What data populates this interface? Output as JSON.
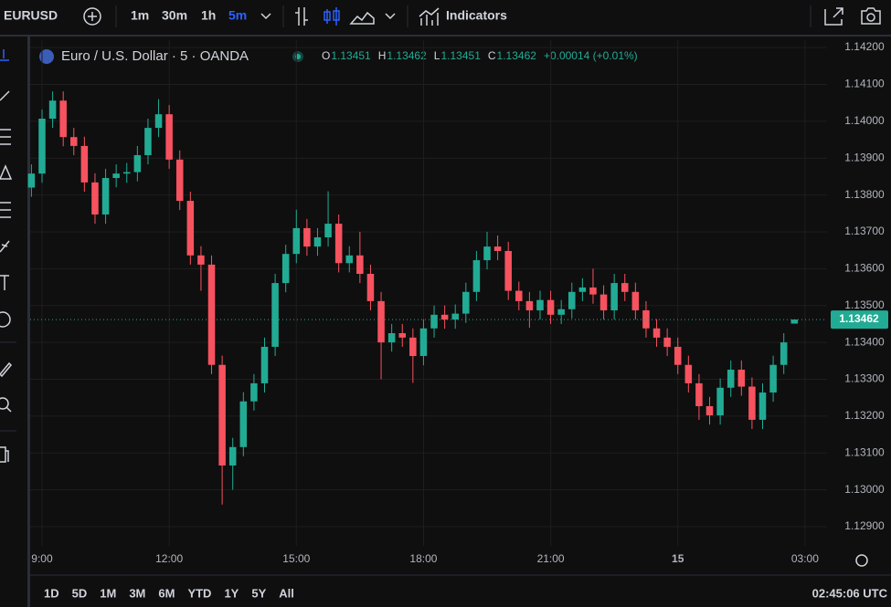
{
  "toolbar": {
    "symbol": "EURUSD",
    "intervals": [
      "1m",
      "30m",
      "1h",
      "5m"
    ],
    "indicators": "Indicators"
  },
  "ranges": [
    "1D",
    "5D",
    "1M",
    "3M",
    "6M",
    "YTD",
    "1Y",
    "5Y",
    "All"
  ],
  "clock": "02:45:06 UTC",
  "chart_data": {
    "type": "candlestick",
    "title": "Euro / U.S. Dollar · 5 · OANDA",
    "ohlc_legend": [
      {
        "label": "O",
        "value": 1.13451
      },
      {
        "label": "H",
        "value": 1.13462
      },
      {
        "label": "L",
        "value": 1.13451
      },
      {
        "label": "C",
        "value": 1.13462
      }
    ],
    "change": "+0.00014 (+0.01%)",
    "up_color": "#22ab94",
    "down_color": "#f7525f",
    "x": [
      8.75,
      9,
      9.25,
      9.5,
      9.75,
      10,
      10.25,
      10.5,
      10.75,
      11,
      11.25,
      11.5,
      11.75,
      12,
      12.25,
      12.5,
      12.75,
      13,
      13.25,
      13.5,
      13.75,
      14,
      14.25,
      14.5,
      14.75,
      15,
      15.25,
      15.5,
      15.75,
      16,
      16.25,
      16.5,
      16.75,
      17,
      17.25,
      17.5,
      17.75,
      18,
      18.25,
      18.5,
      18.75,
      19,
      19.25,
      19.5,
      19.75,
      20,
      20.25,
      20.5,
      20.75,
      21,
      21.25,
      21.5,
      21.75,
      22,
      22.25,
      22.5,
      22.75,
      23,
      23.25,
      23.5,
      23.75,
      24,
      24.25,
      24.5,
      24.75,
      25,
      25.25,
      25.5,
      25.75,
      26,
      26.25,
      26.5,
      26.75
    ],
    "open": [
      1.1382,
      1.13858,
      1.14007,
      1.14056,
      1.13957,
      1.13933,
      1.13834,
      1.13747,
      1.13846,
      1.13858,
      1.13862,
      1.13908,
      1.13982,
      1.14019,
      1.13896,
      1.13784,
      1.13636,
      1.13611,
      1.13339,
      1.13066,
      1.13116,
      1.1324,
      1.13289,
      1.13388,
      1.13561,
      1.1364,
      1.1371,
      1.1366,
      1.13685,
      1.13722,
      1.13615,
      1.13636,
      1.13586,
      1.13512,
      1.134,
      1.13425,
      1.13413,
      1.13363,
      1.13438,
      1.13475,
      1.13462,
      1.13478,
      1.13537,
      1.13623,
      1.1366,
      1.13648,
      1.1354,
      1.13512,
      1.13487,
      1.13515,
      1.13475,
      1.1349,
      1.13537,
      1.13549,
      1.1353,
      1.13487,
      1.13561,
      1.13537,
      1.13487,
      1.13438,
      1.13413,
      1.13388,
      1.13339,
      1.13289,
      1.13227,
      1.13202,
      1.13277,
      1.13326,
      1.1328,
      1.1319,
      1.13264,
      1.13339,
      1.13451
    ],
    "high": [
      1.13883,
      1.14032,
      1.14081,
      1.14081,
      1.13982,
      1.13958,
      1.13859,
      1.13871,
      1.13883,
      1.13887,
      1.13933,
      1.14007,
      1.1406,
      1.14044,
      1.13921,
      1.13809,
      1.13661,
      1.13636,
      1.13364,
      1.13141,
      1.13265,
      1.13314,
      1.13413,
      1.13586,
      1.13665,
      1.1376,
      1.13735,
      1.1371,
      1.1381,
      1.13747,
      1.13661,
      1.137,
      1.13611,
      1.13537,
      1.1345,
      1.1345,
      1.13438,
      1.13463,
      1.135,
      1.135,
      1.13503,
      1.13562,
      1.13648,
      1.137,
      1.1369,
      1.13673,
      1.13565,
      1.13537,
      1.1354,
      1.1354,
      1.13515,
      1.13562,
      1.13574,
      1.136,
      1.13555,
      1.13586,
      1.13586,
      1.13562,
      1.13512,
      1.13463,
      1.13438,
      1.13413,
      1.13364,
      1.13314,
      1.13252,
      1.13302,
      1.13351,
      1.13351,
      1.13305,
      1.13289,
      1.13364,
      1.13425,
      1.13462
    ],
    "low": [
      1.13795,
      1.13833,
      1.13982,
      1.13932,
      1.13908,
      1.13809,
      1.13722,
      1.13722,
      1.13821,
      1.13833,
      1.13837,
      1.13883,
      1.13957,
      1.13871,
      1.13759,
      1.13611,
      1.1354,
      1.13314,
      1.1296,
      1.13,
      1.13091,
      1.13215,
      1.13264,
      1.13363,
      1.13536,
      1.13615,
      1.13635,
      1.13635,
      1.1366,
      1.1359,
      1.1359,
      1.13561,
      1.13487,
      1.133,
      1.13375,
      1.13388,
      1.1329,
      1.13338,
      1.13413,
      1.13437,
      1.13437,
      1.13453,
      1.13512,
      1.13598,
      1.13623,
      1.13515,
      1.13487,
      1.1344,
      1.13462,
      1.1345,
      1.1345,
      1.13465,
      1.13512,
      1.13505,
      1.13462,
      1.13462,
      1.13512,
      1.13462,
      1.13413,
      1.13388,
      1.13363,
      1.13314,
      1.13264,
      1.1319,
      1.13177,
      1.13177,
      1.13252,
      1.13255,
      1.13165,
      1.13165,
      1.13239,
      1.13314,
      1.13451
    ],
    "close": [
      1.13858,
      1.14007,
      1.14056,
      1.13957,
      1.13933,
      1.13834,
      1.13747,
      1.13846,
      1.13858,
      1.13862,
      1.13908,
      1.13982,
      1.14019,
      1.13896,
      1.13784,
      1.13636,
      1.13611,
      1.13339,
      1.13066,
      1.13116,
      1.1324,
      1.13289,
      1.13388,
      1.13561,
      1.1364,
      1.1371,
      1.1366,
      1.13685,
      1.13722,
      1.13615,
      1.13636,
      1.13586,
      1.13512,
      1.134,
      1.13425,
      1.13413,
      1.13363,
      1.13438,
      1.13475,
      1.13462,
      1.13478,
      1.13537,
      1.13623,
      1.1366,
      1.13648,
      1.1354,
      1.13512,
      1.13487,
      1.13515,
      1.13475,
      1.1349,
      1.13537,
      1.13549,
      1.1353,
      1.13487,
      1.13561,
      1.13537,
      1.13487,
      1.13438,
      1.13413,
      1.13388,
      1.13339,
      1.13289,
      1.13227,
      1.13202,
      1.13277,
      1.13326,
      1.1328,
      1.1319,
      1.13264,
      1.13339,
      1.134,
      1.13462
    ],
    "last_price": 1.13462,
    "xlim": [
      8.72,
      27.52
    ],
    "ylim": [
      1.12848,
      1.1422
    ],
    "xticks": [
      {
        "value": 9,
        "label": "9:00"
      },
      {
        "value": 12,
        "label": "12:00"
      },
      {
        "value": 15,
        "label": "15:00"
      },
      {
        "value": 18,
        "label": "18:00"
      },
      {
        "value": 21,
        "label": "21:00"
      },
      {
        "value": 24,
        "label": "15"
      },
      {
        "value": 27,
        "label": "03:00"
      }
    ],
    "yticks": [
      {
        "value": 1.129,
        "label": "1.12900"
      },
      {
        "value": 1.13,
        "label": "1.13000"
      },
      {
        "value": 1.131,
        "label": "1.13100"
      },
      {
        "value": 1.132,
        "label": "1.13200"
      },
      {
        "value": 1.133,
        "label": "1.13300"
      },
      {
        "value": 1.134,
        "label": "1.13400"
      },
      {
        "value": 1.135,
        "label": "1.13500"
      },
      {
        "value": 1.136,
        "label": "1.13600"
      },
      {
        "value": 1.137,
        "label": "1.13700"
      },
      {
        "value": 1.138,
        "label": "1.13800"
      },
      {
        "value": 1.139,
        "label": "1.13900"
      },
      {
        "value": 1.14,
        "label": "1.14000"
      },
      {
        "value": 1.141,
        "label": "1.14100"
      },
      {
        "value": 1.142,
        "label": "1.14200"
      }
    ],
    "grid": true
  }
}
